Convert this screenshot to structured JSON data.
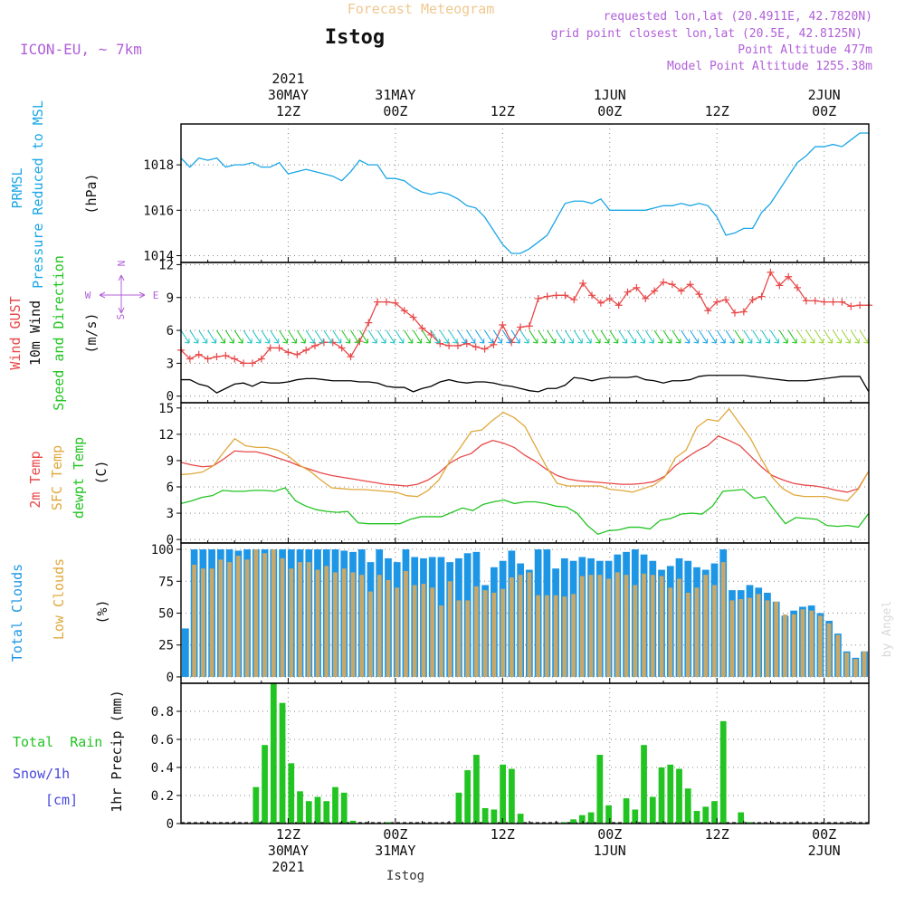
{
  "header": {
    "title": "Forecast Meteogram",
    "location": "Istog",
    "model": "ICON-EU, ~ 7km",
    "requested": "requested lon,lat (20.4911E, 42.7820N)",
    "grid_point": "grid point closest lon,lat (20.5E, 42.8125N)",
    "point_altitude": "Point Altitude 477m",
    "model_altitude": "Model Point Altitude 1255.38m",
    "credit": "by Angel",
    "footer": "Istog"
  },
  "time_axis": {
    "top_labels": [
      {
        "x": 12,
        "lines": [
          "2021",
          "30MAY",
          "12Z"
        ]
      },
      {
        "x": 24,
        "lines": [
          "31MAY",
          "00Z"
        ]
      },
      {
        "x": 36,
        "lines": [
          "12Z"
        ]
      },
      {
        "x": 48,
        "lines": [
          "1JUN",
          "00Z"
        ]
      },
      {
        "x": 60,
        "lines": [
          "12Z"
        ]
      },
      {
        "x": 72,
        "lines": [
          "2JUN",
          "00Z"
        ]
      }
    ],
    "bottom_labels": [
      {
        "x": 12,
        "lines": [
          "12Z",
          "30MAY",
          "2021"
        ]
      },
      {
        "x": 24,
        "lines": [
          "00Z",
          "31MAY"
        ]
      },
      {
        "x": 36,
        "lines": [
          "12Z"
        ]
      },
      {
        "x": 48,
        "lines": [
          "00Z",
          "1JUN"
        ]
      },
      {
        "x": 60,
        "lines": [
          "12Z"
        ]
      },
      {
        "x": 72,
        "lines": [
          "00Z",
          "2JUN"
        ]
      }
    ],
    "xlim": [
      0,
      77
    ]
  },
  "colors": {
    "pressure": "#1aa6e6",
    "gust": "#e84848",
    "wind": "#000000",
    "sfc": "#e0a83c",
    "dewpt": "#22c422",
    "total_cloud": "#1e96e6",
    "low_cloud": "#c8a868",
    "rain": "#22c422",
    "snow": "#4848e0",
    "purple": "#b060d8",
    "title": "#f0c890"
  },
  "chart_data": [
    {
      "type": "line",
      "panel": "pressure",
      "ylabel": [
        "PRMSL",
        "Pressure Reduced to MSL"
      ],
      "unit": "(hPa)",
      "yticks": [
        1014,
        1016,
        1018
      ],
      "ylim": [
        1013.7,
        1019.8
      ],
      "series": [
        {
          "values": [
            1018.3,
            1017.9,
            1018.3,
            1018.2,
            1018.3,
            1017.9,
            1018.0,
            1018.0,
            1018.1,
            1017.9,
            1017.9,
            1018.1,
            1017.6,
            1017.7,
            1017.8,
            1017.7,
            1017.6,
            1017.5,
            1017.3,
            1017.7,
            1018.2,
            1018.0,
            1018.0,
            1017.4,
            1017.4,
            1017.3,
            1017.0,
            1016.8,
            1016.7,
            1016.8,
            1016.7,
            1016.5,
            1016.2,
            1016.1,
            1015.7,
            1015.1,
            1014.5,
            1014.1,
            1014.1,
            1014.3,
            1014.6,
            1014.9,
            1015.6,
            1016.3,
            1016.4,
            1016.4,
            1016.3,
            1016.5,
            1016.0,
            1016.0,
            1016.0,
            1016.0,
            1016.0,
            1016.1,
            1016.2,
            1016.2,
            1016.3,
            1016.2,
            1016.3,
            1016.2,
            1015.7,
            1014.9,
            1015.0,
            1015.2,
            1015.2,
            1015.9,
            1016.3,
            1016.9,
            1017.5,
            1018.1,
            1018.4,
            1018.8,
            1018.8,
            1018.9,
            1018.8,
            1019.1,
            1019.4,
            1019.4
          ]
        }
      ]
    },
    {
      "type": "line",
      "panel": "wind",
      "ylabel": [
        "Wind GUST",
        "10m Wind",
        "Speed and Direction"
      ],
      "unit": "(m/s)",
      "yticks": [
        0,
        3,
        6,
        9,
        12
      ],
      "ylim": [
        -0.6,
        12.2
      ],
      "compass": {
        "n": "N",
        "s": "S",
        "e": "E",
        "w": "W"
      },
      "series": [
        {
          "name": "Wind GUST",
          "values": [
            4.2,
            3.4,
            3.8,
            3.4,
            3.6,
            3.7,
            3.4,
            3.0,
            3.0,
            3.4,
            4.4,
            4.4,
            4.0,
            3.8,
            4.2,
            4.6,
            4.9,
            4.9,
            4.4,
            3.6,
            5.0,
            6.7,
            8.6,
            8.6,
            8.5,
            7.8,
            7.2,
            6.2,
            5.6,
            4.8,
            4.6,
            4.6,
            4.8,
            4.5,
            4.3,
            4.7,
            6.5,
            4.9,
            6.3,
            6.4,
            8.9,
            9.1,
            9.2,
            9.2,
            8.8,
            10.3,
            9.2,
            8.5,
            8.9,
            8.3,
            9.5,
            9.9,
            8.9,
            9.6,
            10.4,
            10.2,
            9.6,
            10.2,
            9.3,
            7.8,
            8.6,
            8.8,
            7.6,
            7.7,
            8.8,
            9.1,
            11.3,
            10.1,
            10.9,
            9.9,
            8.7,
            8.7,
            8.6,
            8.6,
            8.6,
            8.2,
            8.3,
            8.3
          ]
        },
        {
          "name": "10m Wind",
          "values": [
            1.5,
            1.5,
            1.1,
            0.9,
            0.3,
            0.7,
            1.1,
            1.2,
            0.9,
            1.3,
            1.2,
            1.2,
            1.3,
            1.5,
            1.6,
            1.6,
            1.5,
            1.4,
            1.4,
            1.4,
            1.3,
            1.3,
            1.2,
            0.9,
            0.8,
            0.8,
            0.4,
            0.7,
            0.9,
            1.3,
            1.5,
            1.3,
            1.2,
            1.3,
            1.3,
            1.2,
            1.0,
            0.9,
            0.7,
            0.5,
            0.4,
            0.7,
            0.7,
            1.0,
            1.7,
            1.6,
            1.4,
            1.6,
            1.7,
            1.7,
            1.7,
            1.8,
            1.5,
            1.4,
            1.2,
            1.4,
            1.4,
            1.5,
            1.8,
            1.9,
            1.9,
            1.9,
            1.9,
            1.9,
            1.8,
            1.7,
            1.6,
            1.5,
            1.4,
            1.4,
            1.4,
            1.5,
            1.6,
            1.7,
            1.8,
            1.8,
            1.8,
            0.4
          ]
        }
      ]
    },
    {
      "type": "line",
      "panel": "temperature",
      "ylabel": [
        "2m Temp",
        "SFC Temp",
        "dewpt Temp"
      ],
      "unit": "(C)",
      "yticks": [
        0,
        3,
        6,
        9,
        12,
        15
      ],
      "ylim": [
        -0.4,
        15.6
      ],
      "series": [
        {
          "name": "2m Temp",
          "values": [
            8.8,
            8.5,
            8.3,
            8.4,
            9.2,
            10.1,
            10.0,
            10.0,
            9.7,
            9.3,
            8.9,
            8.4,
            8.0,
            7.6,
            7.3,
            7.1,
            6.9,
            6.7,
            6.5,
            6.3,
            6.2,
            6.1,
            6.3,
            6.8,
            7.6,
            8.7,
            9.4,
            9.8,
            10.8,
            11.3,
            11.0,
            10.5,
            9.6,
            8.9,
            8.0,
            7.3,
            6.9,
            6.7,
            6.6,
            6.5,
            6.4,
            6.3,
            6.3,
            6.4,
            6.6,
            7.2,
            8.4,
            9.3,
            10.1,
            10.7,
            11.8,
            11.3,
            10.7,
            9.5,
            8.3,
            7.3,
            6.8,
            6.4,
            6.2,
            6.1,
            5.9,
            5.6,
            5.4,
            5.8,
            7.8
          ]
        },
        {
          "name": "SFC Temp",
          "values": [
            7.4,
            7.5,
            7.7,
            8.4,
            10.0,
            11.5,
            10.7,
            10.5,
            10.5,
            10.2,
            9.5,
            8.5,
            7.8,
            6.8,
            5.9,
            5.8,
            5.7,
            5.7,
            5.6,
            5.5,
            5.4,
            5.0,
            4.9,
            5.6,
            6.8,
            8.9,
            10.5,
            12.3,
            12.5,
            13.6,
            14.5,
            13.9,
            12.9,
            10.6,
            8.3,
            6.4,
            6.1,
            6.1,
            6.1,
            6.1,
            5.7,
            5.6,
            5.4,
            5.8,
            6.2,
            7.1,
            9.3,
            10.2,
            12.8,
            13.7,
            13.5,
            14.9,
            13.2,
            11.5,
            9.2,
            7.1,
            5.8,
            5.1,
            4.9,
            4.9,
            4.9,
            4.6,
            4.4,
            5.7,
            7.8
          ]
        },
        {
          "name": "dewpt Temp",
          "values": [
            4.1,
            4.4,
            4.8,
            5.0,
            5.6,
            5.5,
            5.5,
            5.6,
            5.6,
            5.5,
            5.9,
            4.4,
            3.8,
            3.4,
            3.2,
            3.1,
            3.2,
            1.9,
            1.8,
            1.8,
            1.8,
            1.8,
            2.3,
            2.6,
            2.6,
            2.6,
            3.1,
            3.6,
            3.3,
            4.0,
            4.3,
            4.5,
            4.1,
            4.3,
            4.3,
            4.1,
            3.8,
            3.7,
            3.0,
            1.6,
            0.6,
            1.0,
            1.1,
            1.4,
            1.4,
            1.2,
            2.2,
            2.4,
            2.9,
            3.0,
            2.9,
            3.8,
            5.5,
            5.6,
            5.7,
            4.7,
            4.9,
            3.3,
            1.8,
            2.5,
            2.4,
            2.3,
            1.6,
            1.5,
            1.6,
            1.4,
            3.0
          ]
        }
      ]
    },
    {
      "type": "bar",
      "panel": "clouds",
      "ylabel": [
        "Total Clouds",
        "Low Clouds"
      ],
      "unit": "(%)",
      "yticks": [
        0,
        25,
        50,
        75,
        100
      ],
      "ylim": [
        -5,
        105
      ],
      "series": [
        {
          "name": "Total Clouds",
          "values": [
            38,
            100,
            100,
            100,
            100,
            100,
            99,
            100,
            100,
            100,
            100,
            100,
            100,
            100,
            100,
            100,
            100,
            100,
            99,
            98,
            100,
            90,
            100,
            93,
            90,
            100,
            94,
            93,
            94,
            94,
            90,
            93,
            97,
            98,
            72,
            86,
            91,
            99,
            89,
            84,
            100,
            100,
            85,
            93,
            91,
            94,
            93,
            91,
            91,
            96,
            98,
            100,
            96,
            91,
            84,
            87,
            93,
            91,
            86,
            84,
            89,
            100,
            68,
            68,
            72,
            70,
            66,
            59,
            48,
            52,
            55,
            56,
            50,
            44,
            34,
            20,
            15,
            20
          ]
        },
        {
          "name": "Low Clouds",
          "values": [
            0,
            88,
            85,
            85,
            92,
            90,
            95,
            92,
            100,
            97,
            100,
            93,
            85,
            90,
            90,
            84,
            87,
            82,
            85,
            82,
            80,
            67,
            80,
            76,
            70,
            83,
            72,
            73,
            70,
            56,
            75,
            60,
            60,
            71,
            68,
            66,
            69,
            78,
            80,
            82,
            64,
            64,
            64,
            63,
            65,
            79,
            80,
            80,
            77,
            82,
            80,
            72,
            81,
            80,
            79,
            70,
            77,
            66,
            70,
            80,
            72,
            90,
            60,
            61,
            62,
            65,
            60,
            59,
            49,
            49,
            53,
            52,
            48,
            42,
            33,
            19,
            14,
            20
          ]
        }
      ]
    },
    {
      "type": "bar",
      "panel": "precip",
      "ylabel": [
        "Total  Rain",
        "Snow/1h",
        "[cm]"
      ],
      "yaxis_label": "1hr Precip (mm)",
      "yticks": [
        0,
        0.2,
        0.4,
        0.6,
        0.8
      ],
      "ylim": [
        0,
        1.0
      ],
      "series": [
        {
          "name": "Total Rain",
          "values": [
            0,
            0,
            0,
            0,
            0,
            0,
            0,
            0,
            0.26,
            0.56,
            1.0,
            0.86,
            0.43,
            0.23,
            0.16,
            0.19,
            0.16,
            0.26,
            0.22,
            0.02,
            0,
            0,
            0,
            0.01,
            0,
            0,
            0,
            0,
            0,
            0,
            0,
            0.22,
            0.38,
            0.49,
            0.11,
            0.1,
            0.42,
            0.39,
            0.07,
            0,
            0,
            0,
            0,
            0.01,
            0.03,
            0.06,
            0.08,
            0.49,
            0.13,
            0,
            0.18,
            0.1,
            0.56,
            0.19,
            0.4,
            0.42,
            0.39,
            0.25,
            0.09,
            0.12,
            0.16,
            0.73,
            0,
            0.08,
            0.01,
            0,
            0,
            0,
            0,
            0,
            0,
            0,
            0,
            0,
            0,
            0,
            0,
            0
          ]
        }
      ]
    }
  ]
}
